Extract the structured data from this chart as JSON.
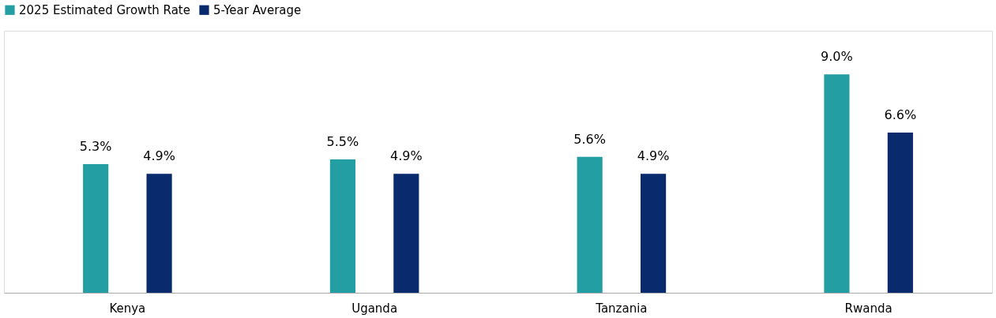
{
  "chart_data": {
    "type": "bar",
    "categories": [
      "Kenya",
      "Uganda",
      "Tanzania",
      "Rwanda"
    ],
    "series": [
      {
        "name": "2025 Estimated Growth Rate",
        "color": "#239ea3",
        "values": [
          5.3,
          5.5,
          5.6,
          9.0
        ],
        "value_labels": [
          "5.3%",
          "5.5%",
          "5.6%",
          "9.0%"
        ]
      },
      {
        "name": "5-Year Average",
        "color": "#0a2a6e",
        "values": [
          4.9,
          4.9,
          4.9,
          6.6
        ],
        "value_labels": [
          "4.9%",
          "4.9%",
          "4.9%",
          "6.6%"
        ]
      }
    ],
    "legend": "top",
    "grid": false
  }
}
